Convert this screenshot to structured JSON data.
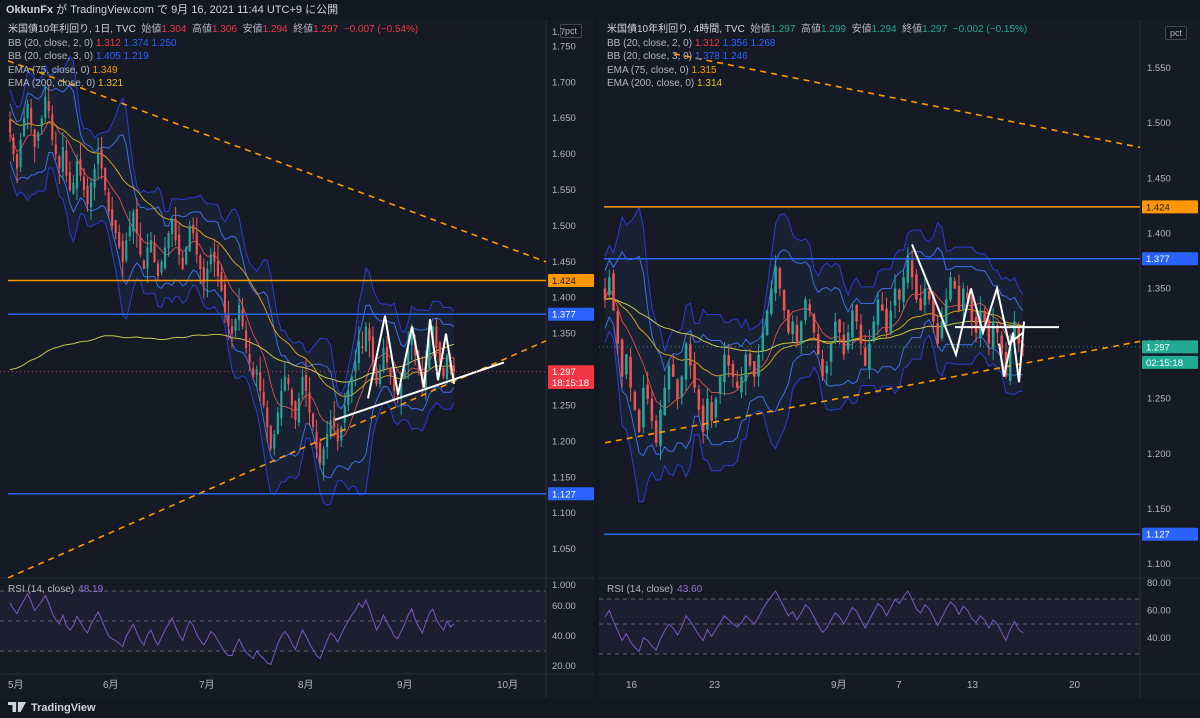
{
  "header": {
    "author": "OkkunFx",
    "text": " が TradingView.com で 9月 16, 2021 11:44 UTC+9 に公開"
  },
  "footer": {
    "logo_text": "TradingView"
  },
  "panels": [
    {
      "id": "left",
      "axis_label": "pct",
      "legend": {
        "title": "米国債10年利回り, 1日, TVC",
        "o_label": "始値",
        "o": "1.304",
        "h_label": "高値",
        "h": "1.306",
        "l_label": "安値",
        "l": "1.294",
        "c_label": "終値",
        "c": "1.297",
        "chg": "−0.007 (−0.54%)",
        "bb1_label": "BB (20, close, 2, 0)",
        "bb1": [
          "1.312",
          "1.374",
          "1.250"
        ],
        "bb2_label": "BB (20, close, 3, 0)",
        "bb2": [
          "1.405",
          "1.219"
        ],
        "ema75_label": "EMA (75, close, 0)",
        "ema75": "1.349",
        "ema200_label": "EMA (200, close, 0)",
        "ema200": "1.321"
      },
      "rsi": {
        "label": "RSI (14, close)",
        "value": "48.19"
      },
      "price_ticks": [
        "1.750",
        "1.700",
        "1.650",
        "1.600",
        "1.550",
        "1.500",
        "1.450",
        "1.400",
        "1.350",
        "1.300",
        "1.250",
        "1.200",
        "1.150",
        "1.100",
        "1.050",
        "1.000"
      ],
      "price_top": "1.7",
      "badges": [
        {
          "text": "1.424",
          "kind": "orange",
          "value": 1.424
        },
        {
          "text": "1.377",
          "kind": "blue",
          "value": 1.377
        },
        {
          "text": "1.297",
          "kind": "red",
          "value": 1.297
        },
        {
          "text": "18:15:18",
          "kind": "red",
          "value": 1.282
        },
        {
          "text": "1.127",
          "kind": "blue",
          "value": 1.127
        }
      ],
      "rsi_ticks": [
        "60.00",
        "40.00",
        "20.00"
      ],
      "time_ticks": [
        "5月",
        "6月",
        "7月",
        "8月",
        "9月",
        "10月"
      ]
    },
    {
      "id": "right",
      "axis_label": "pct",
      "legend": {
        "title": "米国債10年利回り, 4時間, TVC",
        "o_label": "始値",
        "o": "1.297",
        "h_label": "高値",
        "h": "1.299",
        "l_label": "安値",
        "l": "1.294",
        "c_label": "終値",
        "c": "1.297",
        "chg": "−0.002 (−0.15%)",
        "bb1_label": "BB (20, close, 2, 0)",
        "bb1": [
          "1.312",
          "1.356",
          "1.268"
        ],
        "bb2_label": "BB (20, close, 3, 0)",
        "bb2": [
          "1.378",
          "1.246"
        ],
        "ema75_label": "EMA (75, close, 0)",
        "ema75": "1.315",
        "ema200_label": "EMA (200, close, 0)",
        "ema200": "1.314"
      },
      "rsi": {
        "label": "RSI (14, close)",
        "value": "43.60"
      },
      "price_ticks": [
        "1.550",
        "1.500",
        "1.450",
        "1.400",
        "1.350",
        "1.300",
        "1.250",
        "1.200",
        "1.150",
        "1.100"
      ],
      "badges": [
        {
          "text": "1.424",
          "kind": "orange",
          "value": 1.424
        },
        {
          "text": "1.377",
          "kind": "blue",
          "value": 1.377
        },
        {
          "text": "1.297",
          "kind": "teal",
          "value": 1.297
        },
        {
          "text": "02:15:18",
          "kind": "teal",
          "value": 1.283
        },
        {
          "text": "1.127",
          "kind": "blue",
          "value": 1.127
        }
      ],
      "rsi_ticks": [
        "80.00",
        "60.00",
        "40.00"
      ],
      "time_ticks": [
        "16",
        "23",
        "9月",
        "7",
        "13",
        "20"
      ]
    }
  ],
  "colors": {
    "up": "#26a69a",
    "down": "#ef5350",
    "bb_outer": "#2c3bdb",
    "bb_inner": "#3f6ee8",
    "ema75": "#d4a017",
    "ema200": "#c9c64a",
    "orange": "#ff9800",
    "blue": "#2962ff",
    "rsi": "#7e57c2",
    "teal": "#22ab94"
  },
  "chart_data": [
    {
      "type": "candlestick",
      "title": "米国債10年利回り, 1日, TVC",
      "ylim": [
        1.0,
        1.77
      ],
      "y_unit": "pct",
      "horizontal_levels": [
        1.424,
        1.377,
        1.127
      ],
      "last_close": 1.297,
      "closes": [
        1.63,
        1.6,
        1.58,
        1.62,
        1.65,
        1.67,
        1.64,
        1.61,
        1.63,
        1.65,
        1.68,
        1.66,
        1.62,
        1.6,
        1.58,
        1.61,
        1.57,
        1.55,
        1.56,
        1.59,
        1.57,
        1.55,
        1.53,
        1.56,
        1.58,
        1.6,
        1.58,
        1.55,
        1.52,
        1.5,
        1.49,
        1.47,
        1.45,
        1.48,
        1.5,
        1.52,
        1.49,
        1.46,
        1.44,
        1.47,
        1.48,
        1.45,
        1.43,
        1.45,
        1.47,
        1.49,
        1.51,
        1.48,
        1.46,
        1.44,
        1.47,
        1.5,
        1.49,
        1.46,
        1.44,
        1.42,
        1.44,
        1.46,
        1.45,
        1.43,
        1.41,
        1.38,
        1.36,
        1.35,
        1.37,
        1.39,
        1.36,
        1.33,
        1.31,
        1.29,
        1.3,
        1.27,
        1.25,
        1.22,
        1.19,
        1.21,
        1.24,
        1.27,
        1.29,
        1.28,
        1.25,
        1.23,
        1.26,
        1.29,
        1.27,
        1.24,
        1.22,
        1.19,
        1.17,
        1.19,
        1.21,
        1.23,
        1.22,
        1.2,
        1.22,
        1.25,
        1.27,
        1.29,
        1.31,
        1.34,
        1.33,
        1.36,
        1.34,
        1.31,
        1.28,
        1.3,
        1.33,
        1.31,
        1.29,
        1.27,
        1.26,
        1.28,
        1.3,
        1.33,
        1.35,
        1.32,
        1.3,
        1.28,
        1.31,
        1.34,
        1.36,
        1.33,
        1.31,
        1.29,
        1.32,
        1.3,
        1.297
      ],
      "rsi": [
        62,
        58,
        55,
        60,
        64,
        68,
        63,
        57,
        60,
        63,
        67,
        62,
        55,
        51,
        48,
        54,
        47,
        44,
        47,
        53,
        49,
        45,
        42,
        48,
        52,
        56,
        51,
        45,
        40,
        38,
        37,
        35,
        33,
        40,
        44,
        48,
        42,
        37,
        34,
        41,
        44,
        38,
        34,
        39,
        44,
        48,
        52,
        46,
        41,
        37,
        44,
        50,
        47,
        41,
        37,
        34,
        38,
        43,
        41,
        37,
        33,
        29,
        27,
        27,
        33,
        38,
        33,
        29,
        27,
        25,
        30,
        27,
        25,
        22,
        21,
        28,
        35,
        40,
        43,
        40,
        35,
        31,
        38,
        44,
        40,
        35,
        31,
        27,
        25,
        31,
        37,
        42,
        40,
        36,
        41,
        46,
        50,
        54,
        57,
        62,
        59,
        64,
        58,
        51,
        44,
        48,
        54,
        49,
        45,
        40,
        38,
        43,
        48,
        54,
        58,
        51,
        46,
        42,
        49,
        55,
        58,
        51,
        47,
        44,
        50,
        46,
        48.19
      ]
    },
    {
      "type": "candlestick",
      "title": "米国債10年利回り, 4時間, TVC",
      "ylim": [
        1.09,
        1.58
      ],
      "y_unit": "pct",
      "horizontal_levels": [
        1.424,
        1.377,
        1.127
      ],
      "last_close": 1.297,
      "closes": [
        1.34,
        1.36,
        1.33,
        1.3,
        1.27,
        1.29,
        1.26,
        1.24,
        1.22,
        1.26,
        1.25,
        1.23,
        1.21,
        1.24,
        1.26,
        1.28,
        1.27,
        1.25,
        1.27,
        1.3,
        1.28,
        1.26,
        1.24,
        1.22,
        1.25,
        1.23,
        1.25,
        1.27,
        1.29,
        1.28,
        1.27,
        1.26,
        1.27,
        1.29,
        1.28,
        1.27,
        1.29,
        1.31,
        1.33,
        1.35,
        1.37,
        1.35,
        1.33,
        1.31,
        1.32,
        1.3,
        1.32,
        1.34,
        1.33,
        1.31,
        1.29,
        1.27,
        1.28,
        1.3,
        1.32,
        1.31,
        1.29,
        1.31,
        1.33,
        1.32,
        1.3,
        1.28,
        1.3,
        1.32,
        1.34,
        1.33,
        1.31,
        1.33,
        1.35,
        1.34,
        1.36,
        1.38,
        1.36,
        1.34,
        1.33,
        1.35,
        1.34,
        1.32,
        1.3,
        1.32,
        1.34,
        1.36,
        1.35,
        1.33,
        1.35,
        1.34,
        1.32,
        1.31,
        1.33,
        1.32,
        1.3,
        1.32,
        1.31,
        1.29,
        1.27,
        1.3,
        1.32,
        1.3,
        1.297
      ],
      "rsi": [
        55,
        60,
        52,
        45,
        38,
        43,
        37,
        33,
        30,
        40,
        38,
        34,
        31,
        39,
        45,
        50,
        47,
        42,
        48,
        56,
        52,
        47,
        42,
        38,
        46,
        41,
        46,
        51,
        56,
        53,
        50,
        48,
        51,
        56,
        53,
        50,
        55,
        61,
        66,
        70,
        74,
        68,
        62,
        56,
        59,
        53,
        58,
        64,
        61,
        55,
        49,
        44,
        47,
        53,
        58,
        55,
        50,
        56,
        62,
        59,
        53,
        47,
        53,
        59,
        65,
        62,
        56,
        62,
        68,
        65,
        70,
        74,
        68,
        61,
        58,
        64,
        61,
        55,
        49,
        55,
        61,
        66,
        63,
        57,
        63,
        60,
        54,
        51,
        56,
        53,
        47,
        53,
        50,
        44,
        38,
        46,
        52,
        46,
        43.6
      ]
    }
  ]
}
